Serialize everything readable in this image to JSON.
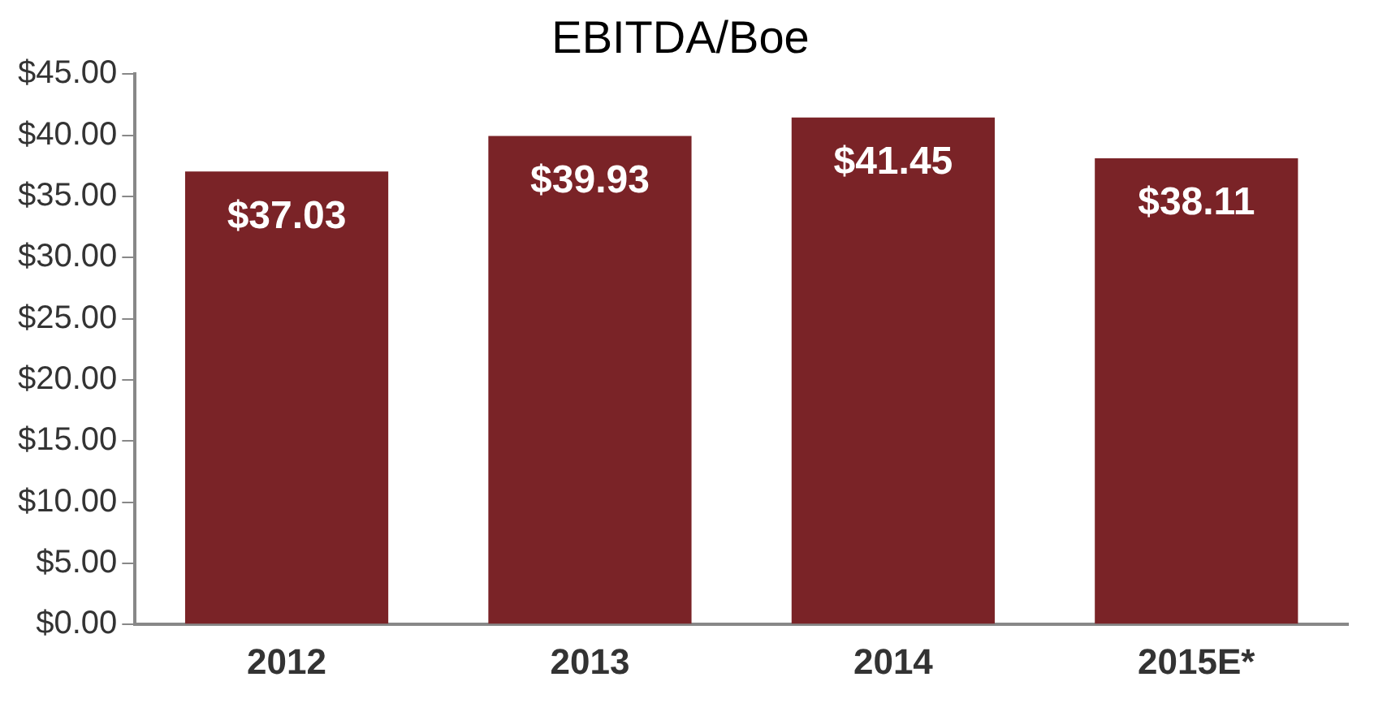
{
  "chart_data": {
    "type": "bar",
    "title": "EBITDA/Boe",
    "categories": [
      "2012",
      "2013",
      "2014",
      "2015E*"
    ],
    "values": [
      37.03,
      39.93,
      41.45,
      38.11
    ],
    "value_labels": [
      "$37.03",
      "$39.93",
      "$41.45",
      "$38.11"
    ],
    "color": "#7a2327",
    "ylim": [
      0,
      45
    ],
    "yticks": [
      {
        "value": 0,
        "label": "$0.00"
      },
      {
        "value": 5,
        "label": "$5.00"
      },
      {
        "value": 10,
        "label": "$10.00"
      },
      {
        "value": 15,
        "label": "$15.00"
      },
      {
        "value": 20,
        "label": "$20.00"
      },
      {
        "value": 25,
        "label": "$25.00"
      },
      {
        "value": 30,
        "label": "$30.00"
      },
      {
        "value": 35,
        "label": "$35.00"
      },
      {
        "value": 40,
        "label": "$40.00"
      },
      {
        "value": 45,
        "label": "$45.00"
      }
    ],
    "grid": false,
    "legend": false
  }
}
